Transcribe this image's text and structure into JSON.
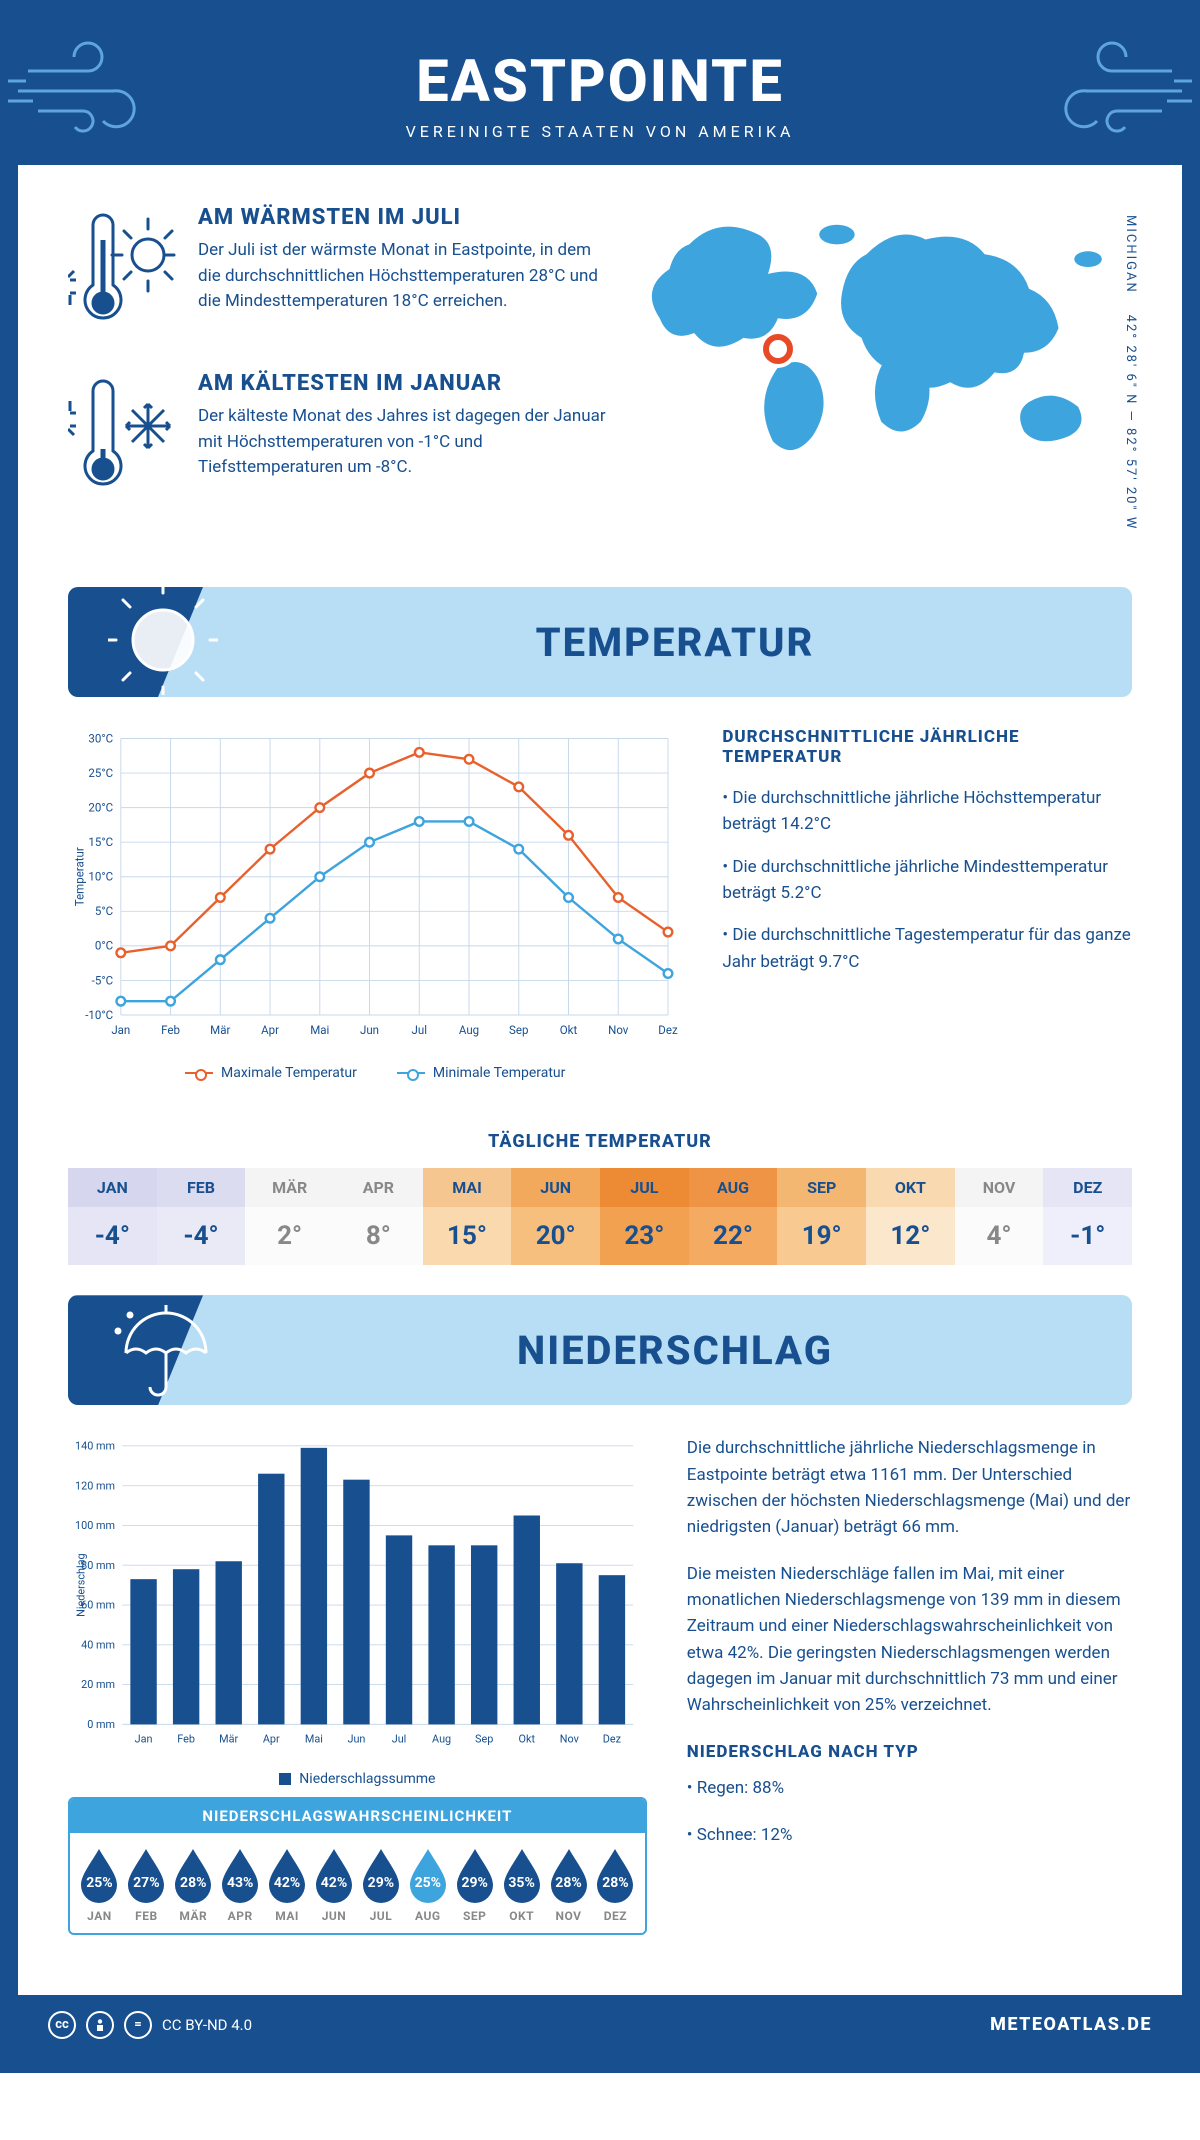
{
  "header": {
    "title": "EASTPOINTE",
    "subtitle": "VEREINIGTE STAATEN VON AMERIKA"
  },
  "intro": {
    "warm": {
      "title": "AM WÄRMSTEN IM JULI",
      "text": "Der Juli ist der wärmste Monat in Eastpointe, in dem die durchschnittlichen Höchsttemperaturen 28°C und die Mindesttemperaturen 18°C erreichen."
    },
    "cold": {
      "title": "AM KÄLTESTEN IM JANUAR",
      "text": "Der kälteste Monat des Jahres ist dagegen der Januar mit Höchsttemperaturen von -1°C und Tiefsttemperaturen um -8°C."
    },
    "coords": "42° 28' 6\" N — 82° 57' 20\" W",
    "region": "MICHIGAN",
    "marker": {
      "left_pct": 25,
      "top_pct": 39
    }
  },
  "months": [
    "Jan",
    "Feb",
    "Mär",
    "Apr",
    "Mai",
    "Jun",
    "Jul",
    "Aug",
    "Sep",
    "Okt",
    "Nov",
    "Dez"
  ],
  "months_upper": [
    "JAN",
    "FEB",
    "MÄR",
    "APR",
    "MAI",
    "JUN",
    "JUL",
    "AUG",
    "SEP",
    "OKT",
    "NOV",
    "DEZ"
  ],
  "temperature": {
    "banner_title": "TEMPERATUR",
    "chart": {
      "type": "line",
      "ylabel": "Temperatur",
      "ymin": -10,
      "ymax": 30,
      "ystep": 5,
      "grid_color": "#c7d8ea",
      "series": [
        {
          "name": "Maximale Temperatur",
          "color": "#e8612c",
          "values": [
            -1,
            0,
            7,
            14,
            20,
            25,
            28,
            27,
            23,
            16,
            7,
            2
          ]
        },
        {
          "name": "Minimale Temperatur",
          "color": "#3ea4de",
          "values": [
            -8,
            -8,
            -2,
            4,
            10,
            15,
            18,
            18,
            14,
            7,
            1,
            -4
          ]
        }
      ]
    },
    "notes": {
      "title": "DURCHSCHNITTLICHE JÄHRLICHE TEMPERATUR",
      "items": [
        "• Die durchschnittliche jährliche Höchsttemperatur beträgt 14.2°C",
        "• Die durchschnittliche jährliche Mindesttemperatur beträgt 5.2°C",
        "• Die durchschnittliche Tagestemperatur für das ganze Jahr beträgt 9.7°C"
      ]
    },
    "daily": {
      "title": "TÄGLICHE TEMPERATUR",
      "values": [
        -4,
        -4,
        2,
        8,
        15,
        20,
        23,
        22,
        19,
        12,
        4,
        -1
      ],
      "head_colors": [
        "#d6d6ee",
        "#dcdcf1",
        "#f4f4f4",
        "#f4f4f4",
        "#f6c690",
        "#f2a95c",
        "#ed8a34",
        "#ef9445",
        "#f4b772",
        "#f8d9b0",
        "#f4f4f4",
        "#e5e5f5"
      ],
      "val_colors": [
        "#e5e5f5",
        "#eaeaf7",
        "#fbfbfb",
        "#fbfbfb",
        "#fad9ae",
        "#f7bf7e",
        "#f2a150",
        "#f4ab61",
        "#f8ca92",
        "#fbe7cc",
        "#fbfbfb",
        "#efeffb"
      ],
      "text_colors": [
        "#174f8f",
        "#174f8f",
        "#888888",
        "#888888",
        "#174f8f",
        "#174f8f",
        "#174f8f",
        "#174f8f",
        "#174f8f",
        "#174f8f",
        "#888888",
        "#174f8f"
      ]
    }
  },
  "precipitation": {
    "banner_title": "NIEDERSCHLAG",
    "chart": {
      "type": "bar",
      "ylabel": "Niederschlag",
      "legend": "Niederschlagssumme",
      "ymin": 0,
      "ymax": 140,
      "ystep": 20,
      "bar_color": "#174f8f",
      "grid_color": "#c7d8ea",
      "values": [
        73,
        78,
        82,
        126,
        139,
        123,
        95,
        90,
        90,
        105,
        81,
        75
      ]
    },
    "paragraphs": [
      "Die durchschnittliche jährliche Niederschlagsmenge in Eastpointe beträgt etwa 1161 mm. Der Unterschied zwischen der höchsten Niederschlagsmenge (Mai) und der niedrigsten (Januar) beträgt 66 mm.",
      "Die meisten Niederschläge fallen im Mai, mit einer monatlichen Niederschlagsmenge von 139 mm in diesem Zeitraum und einer Niederschlagswahrscheinlichkeit von etwa 42%. Die geringsten Niederschlagsmengen werden dagegen im Januar mit durchschnittlich 73 mm und einer Wahrscheinlichkeit von 25% verzeichnet."
    ],
    "by_type": {
      "title": "NIEDERSCHLAG NACH TYP",
      "items": [
        "• Regen: 88%",
        "• Schnee: 12%"
      ]
    },
    "probability": {
      "title": "NIEDERSCHLAGSWAHRSCHEINLICHKEIT",
      "values": [
        25,
        27,
        28,
        43,
        42,
        42,
        29,
        25,
        29,
        35,
        28,
        28
      ],
      "dark_color": "#174f8f",
      "light_color": "#3ea4de",
      "light_index": 7
    }
  },
  "footer": {
    "license": "CC BY-ND 4.0",
    "site": "METEOATLAS.DE"
  }
}
